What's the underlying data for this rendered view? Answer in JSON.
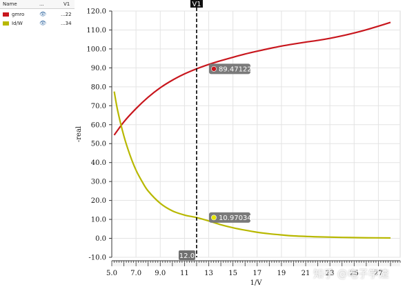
{
  "legend": {
    "headers": {
      "name": "Name",
      "vis": "...",
      "value": "V1"
    },
    "items": [
      {
        "name": "gmro",
        "color": "#c8161d",
        "value": "...22",
        "icon": "eye-icon"
      },
      {
        "name": "Id/W",
        "color": "#b8b800",
        "value": "...34",
        "icon": "eye-icon"
      }
    ]
  },
  "chart_data": {
    "type": "line",
    "title": "",
    "xlabel": "1/V",
    "ylabel": "-real",
    "xlim": [
      5.0,
      28.8
    ],
    "ylim": [
      -10.0,
      120.0
    ],
    "yticks": [
      -10.0,
      0.0,
      10.0,
      20.0,
      30.0,
      40.0,
      50.0,
      60.0,
      70.0,
      80.0,
      90.0,
      100.0,
      110.0,
      120.0
    ],
    "xticks": [
      5.0,
      7.0,
      9.0,
      11,
      13,
      15,
      17,
      19,
      21,
      23,
      25,
      27
    ],
    "ytick_labels": [
      "-10.0",
      "0.0",
      "10.0",
      "20.0",
      "30.0",
      "40.0",
      "50.0",
      "60.0",
      "70.0",
      "80.0",
      "90.0",
      "100.0",
      "110.0",
      "120.0"
    ],
    "xtick_labels": [
      "5.0",
      "7.0",
      "9.0",
      "11",
      "13",
      "15",
      "17",
      "19",
      "21",
      "23",
      "25",
      "27"
    ],
    "grid": true,
    "series": [
      {
        "name": "gmro",
        "color": "#c8161d",
        "x": [
          5.2,
          6,
          7,
          8,
          9,
          10,
          11,
          12,
          13,
          14,
          15,
          16,
          17,
          18,
          19,
          20,
          21,
          22,
          23,
          24,
          25,
          26,
          27,
          28
        ],
        "y": [
          54.5,
          61.5,
          68.5,
          74.5,
          79.5,
          83.5,
          86.8,
          89.5,
          91.8,
          93.8,
          95.6,
          97.3,
          98.8,
          100.2,
          101.5,
          102.6,
          103.6,
          104.5,
          105.6,
          106.9,
          108.4,
          110.1,
          112.0,
          114.0
        ]
      },
      {
        "name": "Id/W",
        "color": "#b8b800",
        "x": [
          5.2,
          5.5,
          6,
          6.5,
          7,
          7.5,
          8,
          9,
          10,
          11,
          12,
          13,
          14,
          15,
          16,
          17,
          18,
          19,
          20,
          22,
          24,
          26,
          28
        ],
        "y": [
          77.5,
          67.0,
          54.0,
          44.0,
          36.0,
          30.0,
          25.0,
          18.5,
          14.5,
          12.3,
          10.97,
          9.2,
          7.2,
          5.6,
          4.3,
          3.2,
          2.4,
          1.8,
          1.3,
          0.8,
          0.5,
          0.3,
          0.2
        ]
      }
    ],
    "cursor": {
      "name": "V1",
      "x": 12.0,
      "label": "12.0"
    },
    "markers": [
      {
        "series": "gmro",
        "x": 12.0,
        "y": 89.47122,
        "label": "89.47122",
        "color": "#c8161d"
      },
      {
        "series": "Id/W",
        "x": 12.0,
        "y": 10.97034,
        "label": "10.97034",
        "color": "#e6e600"
      }
    ]
  },
  "watermark": "知乎 @电子学渣"
}
